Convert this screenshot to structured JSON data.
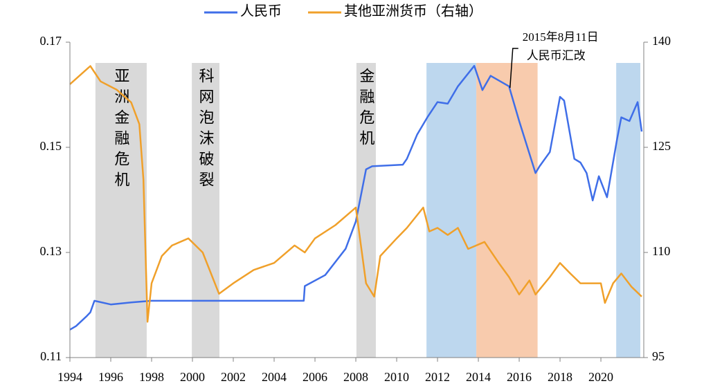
{
  "chart_data": {
    "type": "line",
    "series": [
      {
        "name": "人民币",
        "color": "#3f6ee8",
        "axis": "y",
        "x": [
          1994.0,
          1994.3,
          1994.8,
          1995.0,
          1995.2,
          1996.0,
          1997.0,
          1998.0,
          2005.45,
          2005.5,
          2006.5,
          2007.5,
          2008.0,
          2008.5,
          2008.8,
          2010.3,
          2010.5,
          2011.0,
          2011.5,
          2012.0,
          2012.5,
          2013.0,
          2013.8,
          2014.2,
          2014.6,
          2015.5,
          2016.0,
          2016.8,
          2017.0,
          2017.5,
          2018.0,
          2018.2,
          2018.7,
          2019.0,
          2019.3,
          2019.6,
          2019.9,
          2020.3,
          2020.8,
          2021.0,
          2021.4,
          2021.8,
          2022.0
        ],
        "values": [
          0.1153,
          0.116,
          0.1178,
          0.1186,
          0.1208,
          0.1201,
          0.1205,
          0.1208,
          0.1208,
          0.1236,
          0.1257,
          0.1307,
          0.1359,
          0.1458,
          0.1464,
          0.1467,
          0.1478,
          0.1524,
          0.1557,
          0.1586,
          0.1583,
          0.1616,
          0.1655,
          0.1609,
          0.1636,
          0.1616,
          0.155,
          0.1451,
          0.1464,
          0.1491,
          0.1596,
          0.1589,
          0.1478,
          0.1471,
          0.1451,
          0.1399,
          0.1445,
          0.1405,
          0.1517,
          0.1557,
          0.155,
          0.1586,
          0.153
        ]
      },
      {
        "name": "其他亚洲货币（右轴）",
        "color": "#f0a02a",
        "axis": "y2",
        "x": [
          1994.0,
          1995.0,
          1995.5,
          1996.3,
          1997.0,
          1997.4,
          1997.6,
          1997.8,
          1998.0,
          1998.5,
          1999.0,
          1999.8,
          2000.5,
          2001.3,
          2002.0,
          2003.0,
          2004.0,
          2005.0,
          2005.5,
          2006.0,
          2007.0,
          2008.0,
          2008.5,
          2008.9,
          2009.2,
          2010.0,
          2010.5,
          2011.3,
          2011.6,
          2012.0,
          2012.5,
          2013.0,
          2013.5,
          2014.3,
          2015.0,
          2015.5,
          2016.0,
          2016.5,
          2016.8,
          2017.5,
          2018.0,
          2018.5,
          2019.0,
          2020.0,
          2020.2,
          2020.6,
          2021.0,
          2021.5,
          2022.0
        ],
        "values": [
          134.0,
          136.6,
          134.4,
          133.2,
          131.4,
          128.3,
          120.4,
          100.1,
          105.6,
          109.5,
          111,
          112,
          110,
          104.1,
          105.6,
          107.5,
          108.5,
          111,
          110,
          112,
          113.9,
          116.4,
          105.6,
          103.7,
          109.5,
          112,
          113.5,
          116.4,
          113,
          113.5,
          112.5,
          113.5,
          110.5,
          111.5,
          108.5,
          106.5,
          104,
          106,
          104,
          106.5,
          108.5,
          107,
          105.6,
          105.6,
          102.8,
          105.6,
          107,
          105.1,
          103.7
        ]
      }
    ],
    "spans": [
      {
        "label": "亚洲金融危机",
        "x0": 1995.25,
        "x1": 1997.76,
        "color": "#d9d9d9"
      },
      {
        "label": "科网泡沫破裂",
        "x0": 1999.97,
        "x1": 2001.32,
        "color": "#d9d9d9"
      },
      {
        "label": "金融危机",
        "x0": 2008.03,
        "x1": 2008.98,
        "color": "#d9d9d9"
      },
      {
        "x0": 2011.46,
        "x1": 2013.9,
        "color": "#bdd7ee"
      },
      {
        "x0": 2013.9,
        "x1": 2016.9,
        "color": "#f8cbad"
      },
      {
        "x0": 2020.75,
        "x1": 2021.93,
        "color": "#bdd7ee"
      }
    ],
    "annotation": {
      "text": [
        "2015年8月11日",
        "人民币汇改"
      ],
      "x": 2015.55
    },
    "xlim": [
      1994,
      2022.1
    ],
    "xticks": [
      1994,
      1996,
      1998,
      2000,
      2002,
      2004,
      2006,
      2008,
      2010,
      2012,
      2014,
      2016,
      2018,
      2020
    ],
    "ylim": [
      0.11,
      0.17
    ],
    "yticks": [
      0.11,
      0.13,
      0.15,
      0.17
    ],
    "y2lim": [
      95,
      140
    ],
    "y2ticks": [
      95,
      110,
      125,
      140
    ],
    "legend": "top"
  }
}
